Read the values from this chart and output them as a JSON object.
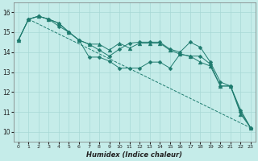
{
  "xlabel": "Humidex (Indice chaleur)",
  "background_color": "#c5ece9",
  "grid_color": "#a8d8d5",
  "line_color": "#1e7b6e",
  "xlim": [
    -0.5,
    23.5
  ],
  "ylim": [
    9.5,
    16.5
  ],
  "yticks": [
    10,
    11,
    12,
    13,
    14,
    15,
    16
  ],
  "xticks": [
    0,
    1,
    2,
    3,
    4,
    5,
    6,
    7,
    8,
    9,
    10,
    11,
    12,
    13,
    14,
    15,
    16,
    17,
    18,
    19,
    20,
    21,
    22,
    23
  ],
  "series": [
    {
      "x": [
        0,
        1,
        2,
        3,
        4,
        5,
        6,
        7,
        8,
        9,
        10,
        11,
        12,
        13,
        14,
        15,
        16,
        17,
        18,
        19,
        20,
        21,
        22,
        23
      ],
      "y": [
        14.6,
        15.65,
        15.8,
        15.65,
        15.45,
        15.0,
        14.6,
        13.75,
        13.75,
        13.55,
        13.2,
        13.2,
        13.2,
        13.5,
        13.5,
        13.2,
        13.9,
        13.8,
        13.8,
        13.4,
        12.3,
        12.3,
        11.0,
        10.2
      ],
      "marker": "D",
      "msize": 2.5
    },
    {
      "x": [
        0,
        1,
        2,
        3,
        4,
        5,
        6,
        7,
        8,
        9,
        10,
        11,
        12,
        13,
        14,
        15,
        16,
        17,
        18,
        19,
        20,
        21,
        22,
        23
      ],
      "y": [
        14.6,
        15.65,
        15.8,
        15.65,
        15.45,
        15.0,
        14.6,
        14.4,
        14.4,
        14.1,
        14.45,
        14.2,
        14.45,
        14.45,
        14.45,
        14.1,
        13.9,
        13.8,
        13.5,
        13.3,
        12.3,
        12.3,
        10.9,
        10.2
      ],
      "marker": "^",
      "msize": 3.5
    },
    {
      "x": [
        1,
        23
      ],
      "y": [
        15.65,
        10.2
      ],
      "marker": null,
      "msize": 0
    },
    {
      "x": [
        0,
        1,
        2,
        3,
        4,
        5,
        6,
        7,
        8,
        9,
        10,
        11,
        12,
        13,
        14,
        15,
        16,
        17,
        18,
        19,
        20,
        21,
        22,
        23
      ],
      "y": [
        14.6,
        15.65,
        15.8,
        15.65,
        15.3,
        15.0,
        14.6,
        14.4,
        14.1,
        13.8,
        14.15,
        14.45,
        14.5,
        14.5,
        14.5,
        14.15,
        14.0,
        14.5,
        14.25,
        13.5,
        12.5,
        12.3,
        11.1,
        10.2
      ],
      "marker": "D",
      "msize": 2.5
    }
  ]
}
